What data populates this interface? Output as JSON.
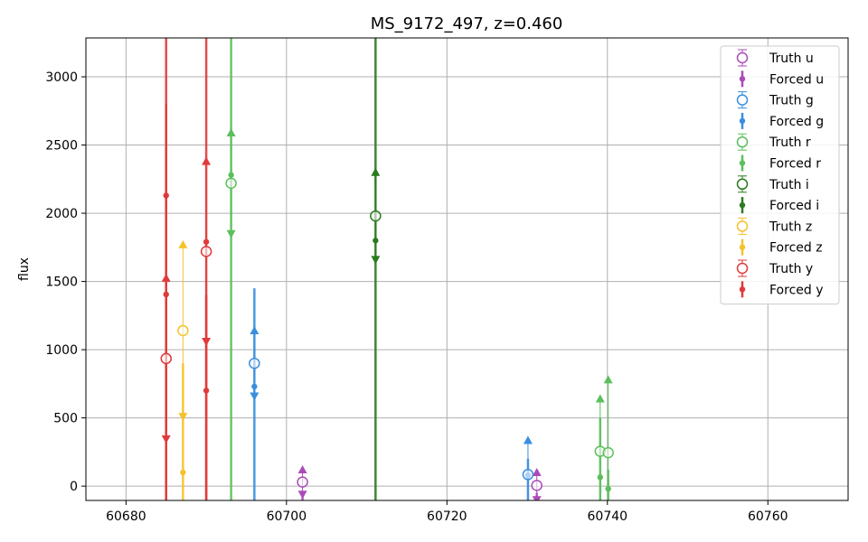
{
  "chart_data": {
    "type": "scatter",
    "title": "MS_9172_497, z=0.460",
    "xlabel": "",
    "ylabel": "flux",
    "xlim": [
      60675,
      60770
    ],
    "ylim": [
      -105,
      3285
    ],
    "xticks": [
      60680,
      60700,
      60720,
      60740,
      60760
    ],
    "yticks": [
      0,
      500,
      1000,
      1500,
      2000,
      2500,
      3000
    ],
    "grid": true,
    "legend_position": "top-right",
    "colors": {
      "u": "#ab4bb8",
      "g": "#3a8ede",
      "r": "#5cbf5c",
      "i": "#2a7a1e",
      "z": "#f5c22c",
      "y": "#e03a3a"
    },
    "legend": [
      {
        "label": "Truth u",
        "band": "u",
        "kind": "truth"
      },
      {
        "label": "Forced u",
        "band": "u",
        "kind": "forced"
      },
      {
        "label": "Truth g",
        "band": "g",
        "kind": "truth"
      },
      {
        "label": "Forced g",
        "band": "g",
        "kind": "forced"
      },
      {
        "label": "Truth r",
        "band": "r",
        "kind": "truth"
      },
      {
        "label": "Forced r",
        "band": "r",
        "kind": "forced"
      },
      {
        "label": "Truth i",
        "band": "i",
        "kind": "truth"
      },
      {
        "label": "Forced i",
        "band": "i",
        "kind": "forced"
      },
      {
        "label": "Truth z",
        "band": "z",
        "kind": "truth"
      },
      {
        "label": "Forced z",
        "band": "z",
        "kind": "forced"
      },
      {
        "label": "Truth y",
        "band": "y",
        "kind": "truth"
      },
      {
        "label": "Forced y",
        "band": "y",
        "kind": "forced"
      }
    ],
    "series": [
      {
        "band": "u",
        "kind": "truth",
        "points": [
          {
            "x": 60702.0,
            "y": 30,
            "lo": -60,
            "hi": 120
          },
          {
            "x": 60731.2,
            "y": 5,
            "lo": -100,
            "hi": 100
          }
        ]
      },
      {
        "band": "u",
        "kind": "forced",
        "points": [
          {
            "x": 60702.0,
            "y": -200,
            "lo": -300,
            "hi": -50
          },
          {
            "x": 60731.2,
            "y": -200,
            "lo": -300,
            "hi": -50
          }
        ]
      },
      {
        "band": "g",
        "kind": "truth",
        "points": [
          {
            "x": 60696.0,
            "y": 900,
            "lo": 660,
            "hi": 1140
          },
          {
            "x": 60730.1,
            "y": 85,
            "lo": -300,
            "hi": 335
          }
        ]
      },
      {
        "band": "g",
        "kind": "forced",
        "points": [
          {
            "x": 60696.0,
            "y": 730,
            "lo": -300,
            "hi": 1450
          },
          {
            "x": 60730.1,
            "y": 80,
            "lo": -300,
            "hi": 200
          }
        ]
      },
      {
        "band": "r",
        "kind": "truth",
        "points": [
          {
            "x": 60693.1,
            "y": 2220,
            "lo": 1850,
            "hi": 2590
          },
          {
            "x": 60739.1,
            "y": 255,
            "lo": -130,
            "hi": 640
          },
          {
            "x": 60740.1,
            "y": 245,
            "lo": -300,
            "hi": 780
          }
        ]
      },
      {
        "band": "r",
        "kind": "forced",
        "points": [
          {
            "x": 60693.1,
            "y": 2280,
            "lo": -300,
            "hi": 3400
          },
          {
            "x": 60739.1,
            "y": 65,
            "lo": -300,
            "hi": 500
          },
          {
            "x": 60740.1,
            "y": -20,
            "lo": -300,
            "hi": 120
          }
        ]
      },
      {
        "band": "i",
        "kind": "truth",
        "points": [
          {
            "x": 60711.1,
            "y": 1980,
            "lo": 1660,
            "hi": 2300
          }
        ]
      },
      {
        "band": "i",
        "kind": "forced",
        "points": [
          {
            "x": 60711.1,
            "y": 1800,
            "lo": -300,
            "hi": 3400
          }
        ]
      },
      {
        "band": "z",
        "kind": "truth",
        "points": [
          {
            "x": 60687.1,
            "y": 1140,
            "lo": 510,
            "hi": 1770
          }
        ]
      },
      {
        "band": "z",
        "kind": "forced",
        "points": [
          {
            "x": 60687.1,
            "y": 100,
            "lo": -300,
            "hi": 900
          }
        ]
      },
      {
        "band": "y",
        "kind": "truth",
        "points": [
          {
            "x": 60685.0,
            "y": 935,
            "lo": 345,
            "hi": 1525
          },
          {
            "x": 60690.0,
            "y": 1720,
            "lo": 1060,
            "hi": 2380
          }
        ]
      },
      {
        "band": "y",
        "kind": "forced",
        "points": [
          {
            "x": 60685.0,
            "y": 2130,
            "lo": -300,
            "hi": 3400
          },
          {
            "x": 60685.0,
            "y": 1405,
            "lo": -300,
            "hi": 2800
          },
          {
            "x": 60690.0,
            "y": 1790,
            "lo": -300,
            "hi": 3400
          },
          {
            "x": 60690.0,
            "y": 700,
            "lo": -300,
            "hi": 1400
          }
        ]
      }
    ]
  }
}
